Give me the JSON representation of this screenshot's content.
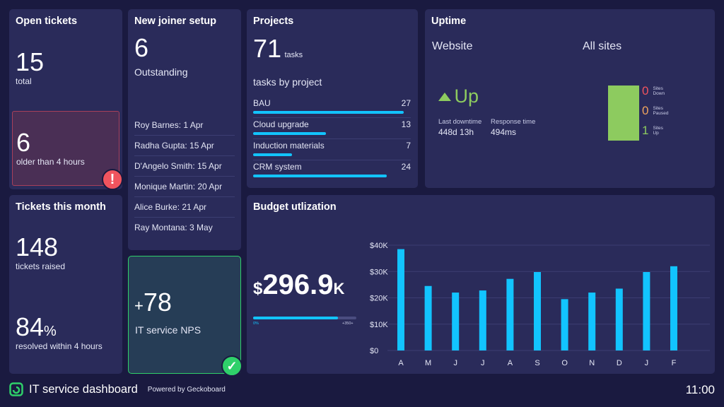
{
  "open_tickets": {
    "title": "Open tickets",
    "total_value": "15",
    "total_label": "total",
    "old_value": "6",
    "old_label": "older than 4 hours",
    "alert_icon": "exclamation-icon",
    "alert_color": "#f0545e"
  },
  "tickets_month": {
    "title": "Tickets this month",
    "raised_value": "148",
    "raised_label": "tickets raised",
    "resolved_value": "84",
    "resolved_unit": "%",
    "resolved_label": "resolved within 4 hours"
  },
  "new_joiner": {
    "title": "New joiner setup",
    "count": "6",
    "count_label": "Outstanding",
    "people": [
      "Roy Barnes: 1 Apr",
      "Radha Gupta: 15 Apr",
      "D'Angelo Smith: 15 Apr",
      "Monique Martin: 20 Apr",
      "Alice Burke: 21 Apr",
      "Ray Montana: 3 May"
    ]
  },
  "nps": {
    "sign": "+",
    "value": "78",
    "label": "IT service NPS",
    "check_icon": "check-icon",
    "ok_color": "#2fd06a"
  },
  "projects": {
    "title": "Projects",
    "count": "71",
    "count_unit": "tasks",
    "subtitle": "tasks by project",
    "max": 27,
    "items": [
      {
        "name": "BAU",
        "value": "27"
      },
      {
        "name": "Cloud upgrade",
        "value": "13"
      },
      {
        "name": "Induction materials",
        "value": "7"
      },
      {
        "name": "CRM system",
        "value": "24"
      }
    ]
  },
  "uptime": {
    "title": "Uptime",
    "website_heading": "Website",
    "all_sites_heading": "All sites",
    "status": "Up",
    "status_color": "#8dcb5f",
    "last_downtime_label": "Last downtime",
    "last_downtime_value": "448d 13h",
    "response_label": "Response time",
    "response_value": "494ms",
    "stats": [
      {
        "value": "0",
        "label_1": "Sites",
        "label_2": "Down",
        "color": "#f0545e"
      },
      {
        "value": "0",
        "label_1": "Sites",
        "label_2": "Paused",
        "color": "#f0a35e"
      },
      {
        "value": "1",
        "label_1": "Sites",
        "label_2": "Up",
        "color": "#8dcb5f"
      }
    ],
    "up_fraction": 1
  },
  "budget": {
    "title": "Budget utlization",
    "currency": "$",
    "value": "296.9",
    "suffix": "K",
    "bar_start": "0%",
    "bar_end": "+350+",
    "progress": 0.82
  },
  "chart_data": {
    "type": "bar",
    "categories": [
      "A",
      "M",
      "J",
      "J",
      "A",
      "S",
      "O",
      "N",
      "D",
      "J",
      "F"
    ],
    "values": [
      38500,
      24500,
      22000,
      22800,
      27200,
      29800,
      19500,
      22000,
      23500,
      29800,
      32000
    ],
    "ylim": [
      0,
      40000
    ],
    "yticks": [
      "$0",
      "$10K",
      "$20K",
      "$30K",
      "$40K"
    ],
    "bar_color": "#12c4ff",
    "grid": true
  },
  "footer": {
    "title": "IT service dashboard",
    "powered_by": "Powered by Geckoboard",
    "time": "11:00",
    "logo_icon": "geckoboard-logo-icon",
    "accent": "#2fd06a"
  }
}
